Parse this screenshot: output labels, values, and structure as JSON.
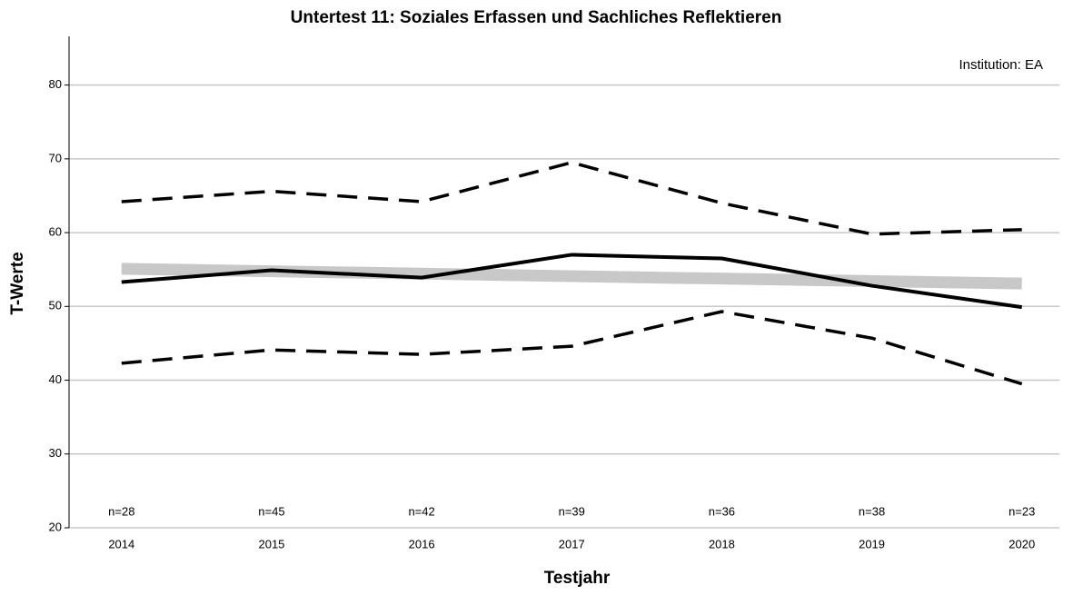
{
  "chart_data": {
    "type": "line",
    "title": "Untertest 11: Soziales Erfassen und Sachliches Reflektieren",
    "x_label": "Testjahr",
    "y_label": "T-Werte",
    "annotation": "Institution: EA",
    "x": [
      2014,
      2015,
      2016,
      2017,
      2018,
      2019,
      2020
    ],
    "n_labels": [
      "n=28",
      "n=45",
      "n=42",
      "n=39",
      "n=36",
      "n=38",
      "n=23"
    ],
    "xlim": [
      2013.65,
      2020.25
    ],
    "xticks": [
      2014,
      2015,
      2016,
      2017,
      2018,
      2019,
      2020
    ],
    "ylim": [
      20,
      86.6
    ],
    "yticks": [
      20,
      30,
      40,
      50,
      60,
      70,
      80
    ],
    "grid": true,
    "series": [
      {
        "color": "#c8c8c8",
        "style": "solid",
        "width": 13,
        "values": [
          55.1,
          null,
          null,
          null,
          null,
          null,
          53.1
        ]
      },
      {
        "color": "#000000",
        "style": "dashed",
        "width": 3.5,
        "values": [
          64.2,
          65.6,
          64.2,
          69.5,
          64.0,
          59.8,
          60.4
        ]
      },
      {
        "color": "#000000",
        "style": "dashed",
        "width": 3.5,
        "values": [
          42.3,
          44.1,
          43.5,
          44.6,
          49.3,
          45.7,
          39.5
        ]
      },
      {
        "color": "#000000",
        "style": "solid",
        "width": 4,
        "values": [
          53.3,
          54.9,
          53.9,
          57.0,
          56.5,
          52.8,
          49.9
        ]
      }
    ]
  }
}
